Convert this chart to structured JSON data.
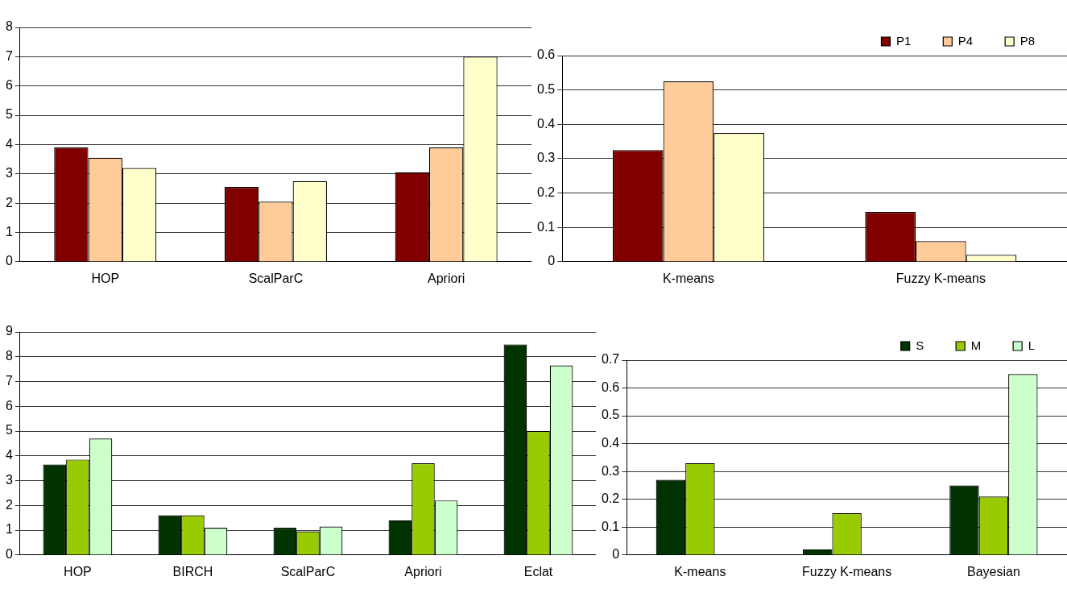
{
  "chart_data": [
    {
      "type": "bar",
      "categories": [
        "HOP",
        "ScalParC",
        "Apriori"
      ],
      "series": [
        {
          "color": "#800000",
          "values": [
            3.9,
            2.55,
            3.05
          ]
        },
        {
          "color": "#ffcc99",
          "values": [
            3.55,
            2.05,
            3.9
          ]
        },
        {
          "color": "#ffffcc",
          "values": [
            3.2,
            2.75,
            7.0
          ]
        }
      ],
      "ylim": [
        0,
        8
      ],
      "yticks": [
        0,
        1,
        2,
        3,
        4,
        5,
        6,
        7,
        8
      ],
      "grid": "y",
      "legend": false
    },
    {
      "type": "bar",
      "categories": [
        "K-means",
        "Fuzzy K-means"
      ],
      "series": [
        {
          "name": "P1",
          "color": "#800000",
          "values": [
            0.325,
            0.145
          ]
        },
        {
          "name": "P4",
          "color": "#ffcc99",
          "values": [
            0.525,
            0.06
          ]
        },
        {
          "name": "P8",
          "color": "#ffffcc",
          "values": [
            0.375,
            0.02
          ]
        }
      ],
      "ylim": [
        0,
        0.6
      ],
      "yticks": [
        0,
        0.1,
        0.2,
        0.3,
        0.4,
        0.5,
        0.6
      ],
      "grid": "y",
      "legend": "top right"
    },
    {
      "type": "bar",
      "categories": [
        "HOP",
        "BIRCH",
        "ScalParC",
        "Apriori",
        "Eclat"
      ],
      "series": [
        {
          "color": "#003300",
          "values": [
            3.65,
            1.6,
            1.1,
            1.4,
            8.5
          ]
        },
        {
          "color": "#99cc00",
          "values": [
            3.85,
            1.6,
            0.95,
            3.7,
            5.0
          ]
        },
        {
          "color": "#ccffcc",
          "values": [
            4.7,
            1.1,
            1.15,
            2.2,
            7.65
          ]
        }
      ],
      "ylim": [
        0,
        9
      ],
      "yticks": [
        0,
        1,
        2,
        3,
        4,
        5,
        6,
        7,
        8,
        9
      ],
      "grid": "y",
      "legend": false
    },
    {
      "type": "bar",
      "categories": [
        "K-means",
        "Fuzzy K-means",
        "Bayesian"
      ],
      "series": [
        {
          "name": "S",
          "color": "#003300",
          "values": [
            0.27,
            0.02,
            0.25
          ]
        },
        {
          "name": "M",
          "color": "#99cc00",
          "values": [
            0.33,
            0.15,
            0.21
          ]
        },
        {
          "name": "L",
          "color": "#ccffcc",
          "values": [
            null,
            null,
            0.65
          ]
        }
      ],
      "ylim": [
        0,
        0.7
      ],
      "yticks": [
        0,
        0.1,
        0.2,
        0.3,
        0.4,
        0.5,
        0.6,
        0.7
      ],
      "grid": "y",
      "legend": "top right"
    }
  ]
}
